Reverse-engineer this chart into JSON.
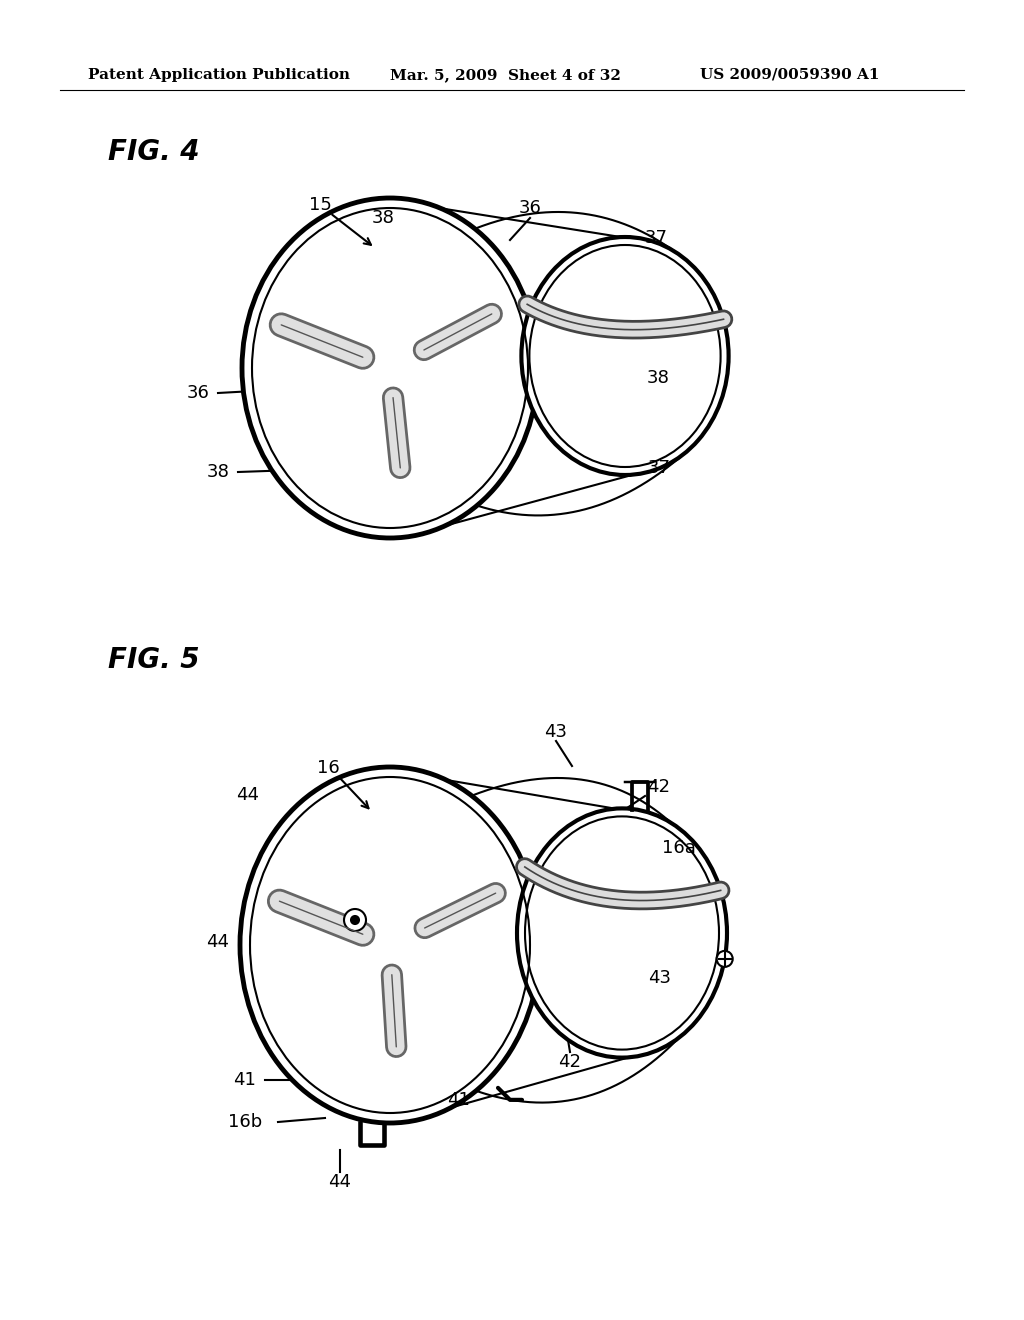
{
  "background_color": "#ffffff",
  "header_left": "Patent Application Publication",
  "header_mid": "Mar. 5, 2009  Sheet 4 of 32",
  "header_right": "US 2009/0059390 A1",
  "fig4_label": "FIG. 4",
  "fig5_label": "FIG. 5",
  "line_color": "#000000",
  "lw": 1.5,
  "tlw": 3.5,
  "label_fontsize": 13,
  "header_fontsize": 11,
  "fig_label_fontsize": 20
}
